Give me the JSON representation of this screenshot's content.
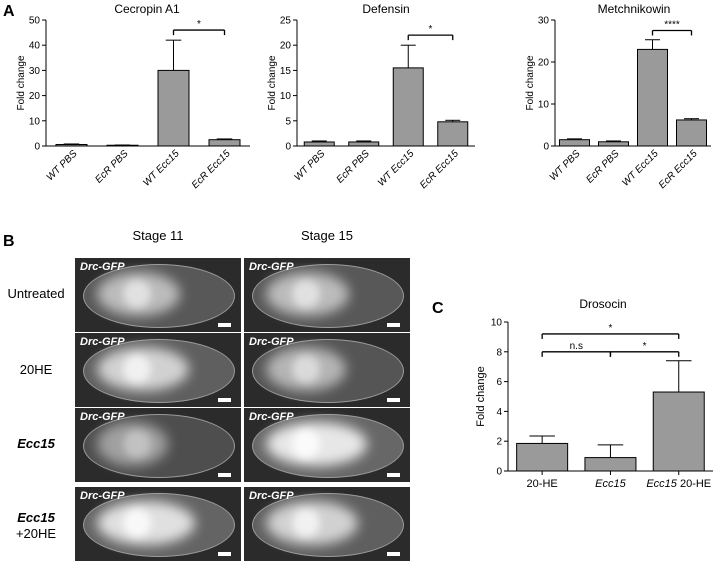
{
  "panel_letters": {
    "a": "A",
    "b": "B",
    "c": "C"
  },
  "panel_b": {
    "col_labels": [
      "Stage 11",
      "Stage 15"
    ],
    "rows": [
      {
        "label": "Untreated",
        "italic": false
      },
      {
        "label": "20HE",
        "italic": false
      },
      {
        "label": "Ecc15",
        "italic": true
      },
      {
        "label_line1": "Ecc15",
        "label_line2": "+20HE"
      }
    ],
    "image_label": "Drc-GFP",
    "images": [
      {
        "row": 0,
        "col": 0,
        "brightness": 0.55
      },
      {
        "row": 0,
        "col": 1,
        "brightness": 0.55
      },
      {
        "row": 1,
        "col": 0,
        "brightness": 0.7
      },
      {
        "row": 1,
        "col": 1,
        "brightness": 0.5
      },
      {
        "row": 2,
        "col": 0,
        "brightness": 0.35
      },
      {
        "row": 2,
        "col": 1,
        "brightness": 0.85
      },
      {
        "row": 3,
        "col": 0,
        "brightness": 0.8
      },
      {
        "row": 3,
        "col": 1,
        "brightness": 0.7
      }
    ]
  },
  "chart_data": [
    {
      "type": "bar",
      "title": "Cecropin A1",
      "ylabel": "Fold change",
      "categories": [
        "WT PBS",
        "EcR PBS",
        "WT Ecc15",
        "EcR Ecc15"
      ],
      "values": [
        0.6,
        0.3,
        30,
        2.5
      ],
      "errors": [
        0.2,
        0.1,
        12,
        0.3
      ],
      "ylim": [
        0,
        50
      ],
      "yticks": [
        0,
        10,
        20,
        30,
        40,
        50
      ],
      "significance": [
        {
          "from": 2,
          "to": 3,
          "label": "*",
          "level": 46
        }
      ],
      "italic_ticks": true
    },
    {
      "type": "bar",
      "title": "Defensin",
      "ylabel": "Fold change",
      "categories": [
        "WT PBS",
        "EcR PBS",
        "WT Ecc15",
        "EcR Ecc15"
      ],
      "values": [
        0.8,
        0.8,
        15.5,
        4.8
      ],
      "errors": [
        0.2,
        0.2,
        4.5,
        0.3
      ],
      "ylim": [
        0,
        25
      ],
      "yticks": [
        0,
        5,
        10,
        15,
        20,
        25
      ],
      "significance": [
        {
          "from": 2,
          "to": 3,
          "label": "*",
          "level": 22
        }
      ],
      "italic_ticks": true
    },
    {
      "type": "bar",
      "title": "Metchnikowin",
      "ylabel": "Fold change",
      "categories": [
        "WT PBS",
        "EcR PBS",
        "WT Ecc15",
        "EcR Ecc15"
      ],
      "values": [
        1.5,
        1.0,
        23,
        6.2
      ],
      "errors": [
        0.2,
        0.2,
        2.3,
        0.3
      ],
      "ylim": [
        0,
        30
      ],
      "yticks": [
        0,
        10,
        20,
        30
      ],
      "significance": [
        {
          "from": 2,
          "to": 3,
          "label": "****",
          "level": 27.5
        }
      ],
      "italic_ticks": true
    },
    {
      "type": "bar",
      "title": "Drosocin",
      "ylabel": "Fold change",
      "categories": [
        "20-HE",
        "Ecc15",
        "Ecc15 20-HE"
      ],
      "category_italic_part": [
        "",
        "Ecc15",
        "Ecc15"
      ],
      "category_plain_part": [
        "20-HE",
        "",
        " 20-HE"
      ],
      "values": [
        1.85,
        0.9,
        5.3
      ],
      "errors": [
        0.5,
        0.85,
        2.1
      ],
      "ylim": [
        0,
        10
      ],
      "yticks": [
        0,
        2,
        4,
        6,
        8,
        10
      ],
      "significance": [
        {
          "from": 0,
          "to": 2,
          "label": "*",
          "level": 9.2
        },
        {
          "from": 0,
          "to": 1,
          "label": "n.s",
          "level": 8.0
        },
        {
          "from": 1,
          "to": 2,
          "label": "*",
          "level": 8.0
        }
      ],
      "italic_ticks": false
    }
  ]
}
